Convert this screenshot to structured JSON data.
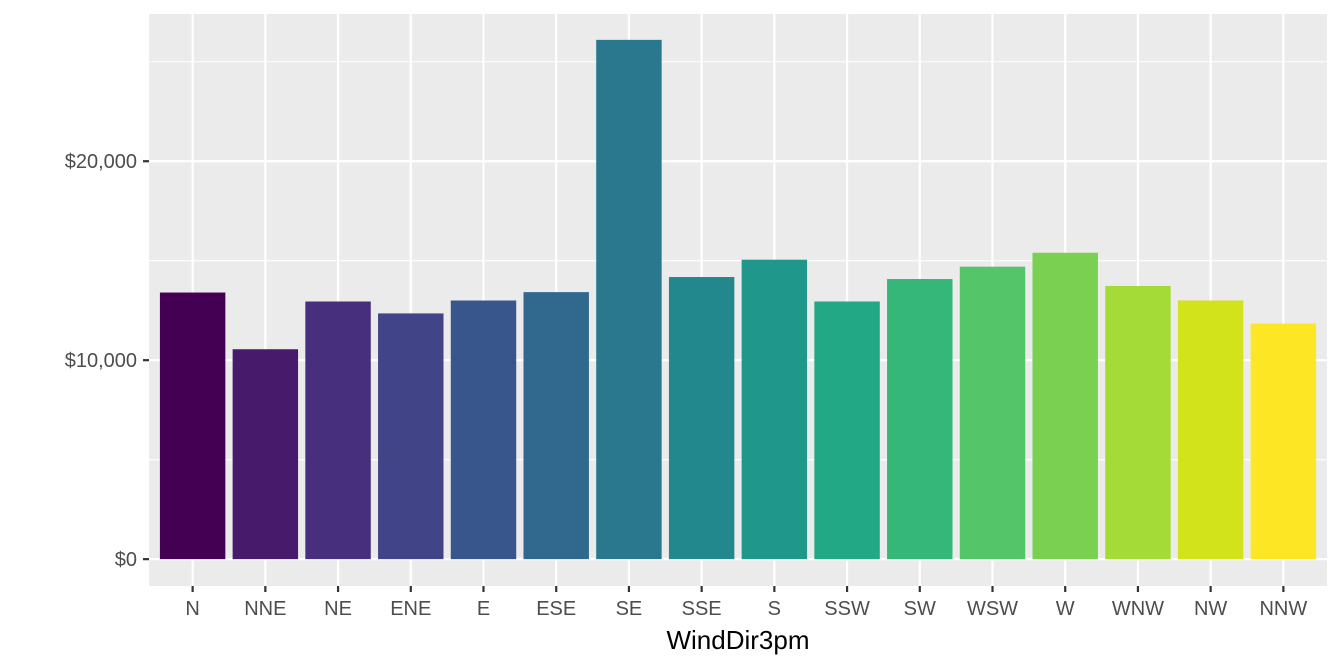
{
  "chart_data": {
    "type": "bar",
    "title": "",
    "xlabel": "WindDir3pm",
    "ylabel": "",
    "categories": [
      "N",
      "NNE",
      "NE",
      "ENE",
      "E",
      "ESE",
      "SE",
      "SSE",
      "S",
      "SSW",
      "SW",
      "WSW",
      "W",
      "WNW",
      "NW",
      "NNW"
    ],
    "values": [
      13400,
      10550,
      12950,
      12350,
      13000,
      13420,
      26100,
      14180,
      15050,
      12950,
      14080,
      14700,
      15400,
      13730,
      13000,
      11840
    ],
    "colors": [
      "#440154",
      "#481a6c",
      "#472f7d",
      "#414487",
      "#39568c",
      "#31688e",
      "#2a788e",
      "#23888e",
      "#1f988b",
      "#22a884",
      "#35b779",
      "#54c568",
      "#7ad151",
      "#a5db36",
      "#d2e21b",
      "#fde725"
    ],
    "ylim": [
      -1350,
      27400
    ],
    "y_ticks": [
      0,
      10000,
      20000
    ],
    "y_tick_labels": [
      "$0",
      "$10,000",
      "$20,000"
    ],
    "grid": true,
    "legend": "none",
    "panel_background": "#ebebeb",
    "grid_color": "#ffffff"
  }
}
